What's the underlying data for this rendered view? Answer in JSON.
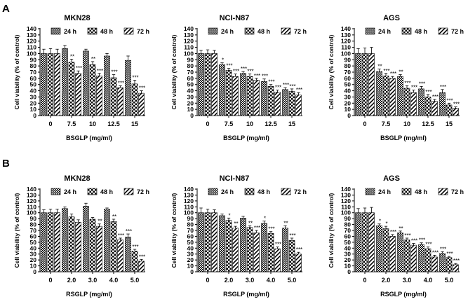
{
  "figure": {
    "panel_labels": [
      "A",
      "B"
    ],
    "legend_labels": [
      "24 h",
      "48 h",
      "72 h"
    ]
  },
  "chart_data": [
    {
      "type": "bar",
      "row": 0,
      "title": "MKN28",
      "xlabel": "BSGLP (mg/ml)",
      "ylabel": "Cell viability (% of control)",
      "ylim": [
        0,
        140
      ],
      "yticks": [
        0,
        10,
        20,
        30,
        40,
        50,
        60,
        70,
        80,
        90,
        100,
        110,
        120,
        130,
        140
      ],
      "categories": [
        "0",
        "7.5",
        "10",
        "12.5",
        "15"
      ],
      "legend_position": "top",
      "series": [
        {
          "name": "24 h",
          "pattern": "dense-check",
          "values": [
            100,
            108,
            104,
            96,
            89
          ],
          "errors": [
            7,
            5,
            3,
            4,
            7
          ],
          "stars": [
            "",
            "",
            "",
            "",
            ""
          ]
        },
        {
          "name": "48 h",
          "pattern": "check",
          "values": [
            100,
            86,
            82,
            61,
            51
          ],
          "errors": [
            8,
            5,
            5,
            5,
            6
          ],
          "stars": [
            "",
            "**",
            "**",
            "***",
            "***"
          ]
        },
        {
          "name": "72 h",
          "pattern": "diagonal",
          "values": [
            100,
            68,
            64,
            45,
            36
          ],
          "errors": [
            7,
            4,
            4,
            3,
            4
          ],
          "stars": [
            "",
            "***",
            "***",
            "***",
            "***"
          ]
        }
      ]
    },
    {
      "type": "bar",
      "row": 0,
      "title": "NCI-N87",
      "xlabel": "BSGLP (mg/ml)",
      "ylabel": "Cell viability (% of control)",
      "ylim": [
        0,
        140
      ],
      "yticks": [
        0,
        10,
        20,
        30,
        40,
        50,
        60,
        70,
        80,
        90,
        100,
        110,
        120,
        130,
        140
      ],
      "categories": [
        "0",
        "7.5",
        "10",
        "12.5",
        "15"
      ],
      "legend_position": "top",
      "series": [
        {
          "name": "24 h",
          "pattern": "dense-check",
          "values": [
            100,
            82,
            68,
            55,
            42
          ],
          "errors": [
            5,
            3,
            3,
            4,
            3
          ],
          "stars": [
            "",
            "*",
            "***",
            "***",
            "***"
          ]
        },
        {
          "name": "48 h",
          "pattern": "check",
          "values": [
            100,
            73,
            63,
            47,
            39
          ],
          "errors": [
            6,
            3,
            4,
            3,
            4
          ],
          "stars": [
            "",
            "***",
            "***",
            "***",
            "***"
          ]
        },
        {
          "name": "72 h",
          "pattern": "diagonal",
          "values": [
            100,
            63,
            57,
            38,
            33
          ],
          "errors": [
            5,
            4,
            3,
            3,
            4
          ],
          "stars": [
            "",
            "***",
            "***",
            "***",
            "***"
          ]
        }
      ]
    },
    {
      "type": "bar",
      "row": 0,
      "title": "AGS",
      "xlabel": "BSGLP (mg/ml)",
      "ylabel": "Cell viability (% of control)",
      "ylim": [
        0,
        140
      ],
      "yticks": [
        0,
        10,
        20,
        30,
        40,
        50,
        60,
        70,
        80,
        90,
        100,
        110,
        120,
        130,
        140
      ],
      "categories": [
        "0",
        "7.5",
        "10",
        "12.5",
        "15"
      ],
      "legend_position": "top",
      "series": [
        {
          "name": "24 h",
          "pattern": "dense-check",
          "values": [
            100,
            71,
            63,
            43,
            37
          ],
          "errors": [
            8,
            4,
            3,
            4,
            5
          ],
          "stars": [
            "",
            "**",
            "**",
            "***",
            "***"
          ]
        },
        {
          "name": "48 h",
          "pattern": "check",
          "values": [
            100,
            64,
            44,
            30,
            17
          ],
          "errors": [
            9,
            4,
            4,
            4,
            3
          ],
          "stars": [
            "",
            "***",
            "***",
            "***",
            "***"
          ]
        },
        {
          "name": "72 h",
          "pattern": "diagonal",
          "values": [
            100,
            60,
            37,
            23,
            12
          ],
          "errors": [
            10,
            3,
            4,
            3,
            2
          ],
          "stars": [
            "",
            "***",
            "***",
            "***",
            "***"
          ]
        }
      ]
    },
    {
      "type": "bar",
      "row": 1,
      "title": "MKN28",
      "xlabel": "RSGLP (mg/ml)",
      "ylabel": "Cell viability (% of control)",
      "ylim": [
        0,
        140
      ],
      "yticks": [
        0,
        10,
        20,
        30,
        40,
        50,
        60,
        70,
        80,
        90,
        100,
        110,
        120,
        130,
        140
      ],
      "categories": [
        "0",
        "2.0",
        "3.0",
        "4.0",
        "5.0"
      ],
      "legend_position": "top",
      "series": [
        {
          "name": "24 h",
          "pattern": "dense-check",
          "values": [
            100,
            107,
            111,
            106,
            59
          ],
          "errors": [
            5,
            3,
            5,
            2,
            5
          ],
          "stars": [
            "",
            "",
            "",
            "",
            "***"
          ]
        },
        {
          "name": "48 h",
          "pattern": "check",
          "values": [
            100,
            93,
            89,
            85,
            35
          ],
          "errors": [
            6,
            5,
            3,
            4,
            3
          ],
          "stars": [
            "",
            "",
            "",
            "**",
            "***"
          ]
        },
        {
          "name": "72 h",
          "pattern": "diagonal",
          "values": [
            100,
            84,
            77,
            54,
            18
          ],
          "errors": [
            6,
            4,
            4,
            3,
            3
          ],
          "stars": [
            "",
            "",
            "**",
            "***",
            "***"
          ]
        }
      ]
    },
    {
      "type": "bar",
      "row": 1,
      "title": "NCI-N87",
      "xlabel": "RSGLP (mg/ml)",
      "ylabel": "Cell viability (% of control)",
      "ylim": [
        0,
        140
      ],
      "yticks": [
        0,
        10,
        20,
        30,
        40,
        50,
        60,
        70,
        80,
        90,
        100,
        110,
        120,
        130,
        140
      ],
      "categories": [
        "0",
        "2.0",
        "3.0",
        "4.0",
        "5.0"
      ],
      "legend_position": "top",
      "series": [
        {
          "name": "24 h",
          "pattern": "dense-check",
          "values": [
            100,
            95,
            91,
            82,
            74
          ],
          "errors": [
            8,
            3,
            3,
            4,
            4
          ],
          "stars": [
            "",
            "",
            "",
            "*",
            "**"
          ]
        },
        {
          "name": "48 h",
          "pattern": "check",
          "values": [
            100,
            87,
            75,
            65,
            53
          ],
          "errors": [
            6,
            4,
            3,
            3,
            4
          ],
          "stars": [
            "",
            "*",
            "**",
            "***",
            "***"
          ]
        },
        {
          "name": "72 h",
          "pattern": "diagonal",
          "values": [
            100,
            74,
            66,
            39,
            30
          ],
          "errors": [
            5,
            3,
            4,
            3,
            3
          ],
          "stars": [
            "",
            "**",
            "***",
            "***",
            "***"
          ]
        }
      ]
    },
    {
      "type": "bar",
      "row": 1,
      "title": "AGS",
      "xlabel": "RSGLP (mg/ml)",
      "ylabel": "Cell viability (% of control)",
      "ylim": [
        0,
        140
      ],
      "yticks": [
        0,
        10,
        20,
        30,
        40,
        50,
        60,
        70,
        80,
        90,
        100,
        110,
        120,
        130,
        140
      ],
      "categories": [
        "0",
        "2.0",
        "3.0",
        "4.0",
        "5.0"
      ],
      "legend_position": "top",
      "series": [
        {
          "name": "24 h",
          "pattern": "dense-check",
          "values": [
            100,
            78,
            66,
            46,
            31
          ],
          "errors": [
            7,
            3,
            3,
            3,
            3
          ],
          "stars": [
            "",
            "*",
            "**",
            "***",
            "***"
          ]
        },
        {
          "name": "48 h",
          "pattern": "check",
          "values": [
            100,
            73,
            54,
            39,
            24
          ],
          "errors": [
            8,
            4,
            3,
            3,
            2
          ],
          "stars": [
            "",
            "*",
            "***",
            "***",
            "***"
          ]
        },
        {
          "name": "72 h",
          "pattern": "diagonal",
          "values": [
            100,
            60,
            45,
            25,
            12
          ],
          "errors": [
            9,
            3,
            3,
            3,
            2
          ],
          "stars": [
            "",
            "***",
            "***",
            "***",
            "***"
          ]
        }
      ]
    }
  ]
}
